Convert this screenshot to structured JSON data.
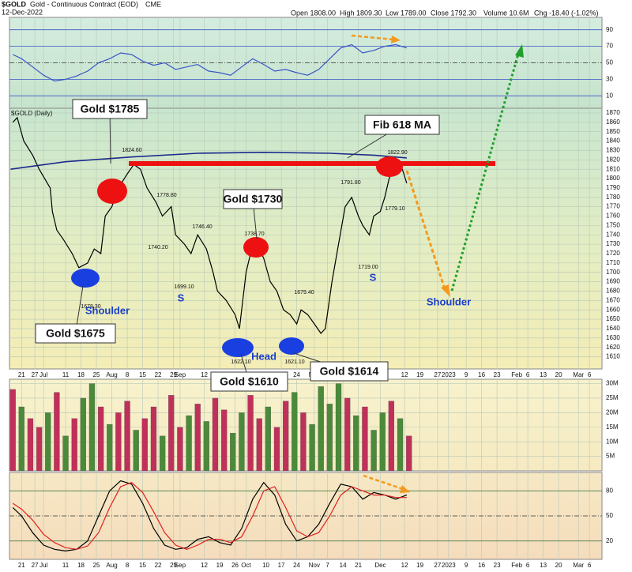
{
  "header": {
    "symbol": "$GOLD",
    "name": "Gold - Continuous Contract (EOD)",
    "exchange": "CME",
    "date": "12-Dec-2022",
    "quote": [
      "Open 1808.00",
      "High 1809.30",
      "Low 1789.00",
      "Close 1792.30",
      "Volume 10.6M",
      "Chg -18.40 (-1.02%)"
    ]
  },
  "chart_data": [
    {
      "type": "line",
      "xlim": [
        -5.5,
        263.7
      ],
      "ylim": [
        -5,
        105
      ],
      "yticks": [
        10,
        30,
        50,
        70,
        90
      ],
      "series": [
        {
          "color": "#3a55c8",
          "x": [
            -4,
            0,
            5,
            10,
            15,
            20,
            25,
            30,
            35,
            40,
            45,
            50,
            55,
            60,
            65,
            70,
            75,
            80,
            85,
            90,
            95,
            100,
            105,
            110,
            115,
            120,
            125,
            130,
            135,
            140,
            145,
            150,
            155,
            160,
            165,
            170,
            175
          ],
          "values": [
            60,
            55,
            45,
            35,
            28,
            30,
            34,
            40,
            50,
            55,
            62,
            60,
            52,
            47,
            50,
            42,
            45,
            48,
            40,
            38,
            35,
            45,
            55,
            48,
            40,
            42,
            38,
            35,
            42,
            55,
            68,
            72,
            62,
            65,
            70,
            72,
            68
          ]
        }
      ]
    },
    {
      "type": "line",
      "label": "$GOLD (Daily)",
      "xlim": [
        -5.5,
        263.7
      ],
      "ylim": [
        1597,
        1875
      ],
      "yticks": [
        1610,
        1620,
        1630,
        1640,
        1650,
        1660,
        1670,
        1680,
        1690,
        1700,
        1710,
        1720,
        1730,
        1740,
        1750,
        1760,
        1770,
        1780,
        1790,
        1800,
        1810,
        1820,
        1830,
        1840,
        1850,
        1860,
        1870
      ],
      "xticks": [
        {
          "value": 0,
          "label": "21"
        },
        {
          "value": 6,
          "label": "27"
        },
        {
          "value": 10,
          "label": "Jul"
        },
        {
          "value": 20,
          "label": "11"
        },
        {
          "value": 27,
          "label": "18"
        },
        {
          "value": 34,
          "label": "25"
        },
        {
          "value": 41,
          "label": "Aug"
        },
        {
          "value": 48,
          "label": "8"
        },
        {
          "value": 55,
          "label": "15"
        },
        {
          "value": 62,
          "label": "22"
        },
        {
          "value": 69,
          "label": "29"
        },
        {
          "value": 72,
          "label": "Sep"
        },
        {
          "value": 83,
          "label": "12"
        },
        {
          "value": 90,
          "label": "19"
        },
        {
          "value": 97,
          "label": "26"
        },
        {
          "value": 102,
          "label": "Oct"
        },
        {
          "value": 111,
          "label": "10"
        },
        {
          "value": 118,
          "label": "17"
        },
        {
          "value": 125,
          "label": "24"
        },
        {
          "value": 133,
          "label": "Nov"
        },
        {
          "value": 139,
          "label": "7"
        },
        {
          "value": 146,
          "label": "14"
        },
        {
          "value": 153,
          "label": "21"
        },
        {
          "value": 163,
          "label": "Dec"
        },
        {
          "value": 174,
          "label": "12"
        },
        {
          "value": 181,
          "label": "19"
        },
        {
          "value": 189,
          "label": "27"
        },
        {
          "value": 194,
          "label": "2023"
        },
        {
          "value": 202,
          "label": "9"
        },
        {
          "value": 209,
          "label": "16"
        },
        {
          "value": 216,
          "label": "23"
        },
        {
          "value": 225,
          "label": "Feb"
        },
        {
          "value": 230,
          "label": "6"
        },
        {
          "value": 237,
          "label": "13"
        },
        {
          "value": 244,
          "label": "20"
        },
        {
          "value": 253,
          "label": "Mar"
        },
        {
          "value": 258,
          "label": "6"
        }
      ],
      "series": [
        {
          "color": "#000000",
          "x": [
            -4,
            -2,
            1,
            5,
            8,
            13,
            14,
            16,
            19,
            23,
            26,
            30,
            33,
            36,
            38,
            41,
            44,
            48,
            51,
            54,
            57,
            61,
            64,
            68,
            70,
            74,
            77,
            80,
            84,
            87,
            89,
            93,
            97,
            99,
            102,
            104,
            107,
            110,
            113,
            116,
            119,
            122,
            125,
            127,
            130,
            133,
            136,
            138,
            141,
            144,
            147,
            150,
            153,
            155,
            158,
            160,
            163,
            165,
            167,
            170,
            173,
            175
          ],
          "values": [
            1860,
            1865,
            1840,
            1825,
            1810,
            1790,
            1765,
            1745,
            1735,
            1720,
            1705,
            1710,
            1725,
            1720,
            1760,
            1770,
            1790,
            1805,
            1815,
            1810,
            1790,
            1775,
            1760,
            1770,
            1740,
            1730,
            1720,
            1740,
            1725,
            1700,
            1680,
            1670,
            1655,
            1640,
            1700,
            1720,
            1730,
            1715,
            1690,
            1680,
            1660,
            1655,
            1645,
            1660,
            1655,
            1645,
            1635,
            1640,
            1690,
            1730,
            1770,
            1780,
            1760,
            1750,
            1740,
            1760,
            1765,
            1780,
            1800,
            1815,
            1810,
            1795
          ]
        },
        {
          "color": "#1c2a8c",
          "x": [
            -5,
            20,
            50,
            80,
            110,
            140,
            160,
            175
          ],
          "values": [
            1810,
            1818,
            1823,
            1827,
            1828,
            1827,
            1825,
            1822
          ]
        }
      ],
      "callouts": [
        "Gold $1785",
        "Gold $1730",
        "Fib 618 MA",
        "Gold $1675",
        "Gold $1610",
        "Gold $1614"
      ],
      "patterns": [
        "Shoulder",
        "S",
        "Head",
        "S",
        "Shoulder"
      ],
      "price_labels": [
        "1824.60",
        "1778.80",
        "1740.20",
        "1746.40",
        "1699.10",
        "1738.70",
        "1679.40",
        "1622.10",
        "1621.10",
        "1791.80",
        "1822.90",
        "1779.10",
        "1719.00",
        "1678.30"
      ]
    },
    {
      "type": "bar",
      "xlim": [
        -5.5,
        263.7
      ],
      "ylim": [
        0,
        31.5
      ],
      "yticks": [
        {
          "value": 5,
          "label": "5M"
        },
        {
          "value": 10,
          "label": "10M"
        },
        {
          "value": 15,
          "label": "15M"
        },
        {
          "value": 20,
          "label": "20M"
        },
        {
          "value": 25,
          "label": "25M"
        },
        {
          "value": 30,
          "label": "30M"
        }
      ],
      "x": [
        -4,
        0,
        4,
        8,
        12,
        16,
        20,
        24,
        28,
        32,
        36,
        40,
        44,
        48,
        52,
        56,
        60,
        64,
        68,
        72,
        76,
        80,
        84,
        88,
        92,
        96,
        100,
        104,
        108,
        112,
        116,
        120,
        124,
        128,
        132,
        136,
        140,
        144,
        148,
        152,
        156,
        160,
        164,
        168,
        172,
        176
      ],
      "values": [
        28,
        22,
        18,
        15,
        20,
        27,
        12,
        18,
        25,
        30,
        22,
        16,
        20,
        24,
        14,
        18,
        22,
        12,
        26,
        15,
        19,
        23,
        17,
        25,
        21,
        13,
        20,
        26,
        18,
        22,
        15,
        24,
        27,
        20,
        16,
        29,
        23,
        30,
        25,
        19,
        22,
        14,
        20,
        24,
        18,
        12
      ],
      "colors": [
        "#c0305a",
        "#4a8a3a",
        "#c0305a",
        "#c0305a",
        "#4a8a3a",
        "#c0305a",
        "#4a8a3a",
        "#c0305a",
        "#4a8a3a",
        "#4a8a3a",
        "#c0305a",
        "#4a8a3a",
        "#c0305a",
        "#c0305a",
        "#4a8a3a",
        "#c0305a",
        "#c0305a",
        "#4a8a3a",
        "#c0305a",
        "#c0305a",
        "#4a8a3a",
        "#c0305a",
        "#4a8a3a",
        "#c0305a",
        "#c0305a",
        "#4a8a3a",
        "#4a8a3a",
        "#c0305a",
        "#c0305a",
        "#4a8a3a",
        "#c0305a",
        "#c0305a",
        "#4a8a3a",
        "#c0305a",
        "#4a8a3a",
        "#4a8a3a",
        "#4a8a3a",
        "#4a8a3a",
        "#c0305a",
        "#4a8a3a",
        "#c0305a",
        "#4a8a3a",
        "#4a8a3a",
        "#c0305a",
        "#4a8a3a",
        "#c0305a"
      ]
    },
    {
      "type": "line",
      "xlim": [
        -5.5,
        263.7
      ],
      "ylim": [
        -2,
        102
      ],
      "yticks": [
        20,
        50,
        80
      ],
      "xticks": [
        {
          "value": 0,
          "label": "21"
        },
        {
          "value": 6,
          "label": "27"
        },
        {
          "value": 10,
          "label": "Jul"
        },
        {
          "value": 20,
          "label": "11"
        },
        {
          "value": 27,
          "label": "18"
        },
        {
          "value": 34,
          "label": "25"
        },
        {
          "value": 41,
          "label": "Aug"
        },
        {
          "value": 48,
          "label": "8"
        },
        {
          "value": 55,
          "label": "15"
        },
        {
          "value": 62,
          "label": "22"
        },
        {
          "value": 69,
          "label": "29"
        },
        {
          "value": 72,
          "label": "Sep"
        },
        {
          "value": 83,
          "label": "12"
        },
        {
          "value": 90,
          "label": "19"
        },
        {
          "value": 97,
          "label": "26"
        },
        {
          "value": 102,
          "label": "Oct"
        },
        {
          "value": 111,
          "label": "10"
        },
        {
          "value": 118,
          "label": "17"
        },
        {
          "value": 125,
          "label": "24"
        },
        {
          "value": 133,
          "label": "Nov"
        },
        {
          "value": 139,
          "label": "7"
        },
        {
          "value": 146,
          "label": "14"
        },
        {
          "value": 153,
          "label": "21"
        },
        {
          "value": 163,
          "label": "Dec"
        },
        {
          "value": 174,
          "label": "12"
        },
        {
          "value": 181,
          "label": "19"
        },
        {
          "value": 189,
          "label": "27"
        },
        {
          "value": 194,
          "label": "2023"
        },
        {
          "value": 202,
          "label": "9"
        },
        {
          "value": 209,
          "label": "16"
        },
        {
          "value": 216,
          "label": "23"
        },
        {
          "value": 225,
          "label": "Feb"
        },
        {
          "value": 230,
          "label": "6"
        },
        {
          "value": 237,
          "label": "13"
        },
        {
          "value": 244,
          "label": "20"
        },
        {
          "value": 253,
          "label": "Mar"
        },
        {
          "value": 258,
          "label": "6"
        }
      ],
      "series": [
        {
          "color": "#000000",
          "x": [
            -4,
            0,
            5,
            10,
            15,
            20,
            25,
            30,
            35,
            40,
            45,
            50,
            55,
            60,
            65,
            70,
            75,
            80,
            85,
            90,
            95,
            100,
            105,
            110,
            115,
            120,
            125,
            130,
            135,
            140,
            145,
            150,
            155,
            160,
            165,
            170,
            175
          ],
          "values": [
            60,
            50,
            30,
            15,
            10,
            8,
            10,
            20,
            50,
            80,
            92,
            88,
            65,
            35,
            15,
            10,
            12,
            22,
            25,
            18,
            15,
            35,
            70,
            90,
            75,
            40,
            20,
            25,
            40,
            65,
            88,
            85,
            70,
            78,
            75,
            70,
            75
          ]
        },
        {
          "color": "#e02020",
          "x": [
            -4,
            0,
            5,
            10,
            15,
            20,
            25,
            30,
            35,
            40,
            45,
            50,
            55,
            60,
            65,
            70,
            75,
            80,
            85,
            90,
            95,
            100,
            105,
            110,
            115,
            120,
            125,
            130,
            135,
            140,
            145,
            150,
            155,
            160,
            165,
            170,
            175
          ],
          "values": [
            65,
            58,
            45,
            28,
            18,
            12,
            10,
            14,
            30,
            60,
            85,
            90,
            78,
            55,
            30,
            15,
            10,
            15,
            22,
            22,
            18,
            25,
            50,
            80,
            85,
            60,
            32,
            25,
            30,
            50,
            75,
            85,
            80,
            75,
            75,
            72,
            72
          ]
        }
      ]
    }
  ]
}
